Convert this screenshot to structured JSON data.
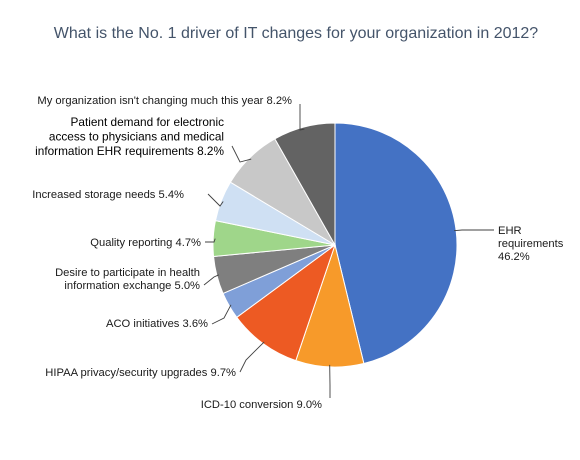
{
  "chart_data": {
    "type": "pie",
    "title": "What is the No. 1 driver of IT changes for your organization in 2012?",
    "start_angle_deg": 0,
    "direction": "clockwise",
    "slices": [
      {
        "label_lines": [
          "EHR",
          "requirements",
          "46.2%"
        ],
        "value": 46.2,
        "color": "#4472c4"
      },
      {
        "label_lines": [
          "ICD-10 conversion 9.0%"
        ],
        "value": 9.0,
        "color": "#f79a2a"
      },
      {
        "label_lines": [
          "HIPAA privacy/security upgrades 9.7%"
        ],
        "value": 9.7,
        "color": "#ed5a23"
      },
      {
        "label_lines": [
          "ACO initiatives 3.6%"
        ],
        "value": 3.6,
        "color": "#7f9fd8"
      },
      {
        "label_lines": [
          "Desire to participate in health",
          "information exchange 5.0%"
        ],
        "value": 5.0,
        "color": "#7f7f7f"
      },
      {
        "label_lines": [
          "Quality reporting 4.7%"
        ],
        "value": 4.7,
        "color": "#9fd68a"
      },
      {
        "label_lines": [
          "Increased storage needs 5.4%"
        ],
        "value": 5.4,
        "color": "#cfe0f3"
      },
      {
        "label_lines": [
          "Patient demand for electronic",
          "access to physicians and medical",
          "information EHR requirements 8.2%"
        ],
        "value": 8.2,
        "color": "#c8c8c8"
      },
      {
        "label_lines": [
          "My organization isn't changing much this year 8.2%"
        ],
        "value": 8.2,
        "color": "#636363"
      }
    ]
  }
}
